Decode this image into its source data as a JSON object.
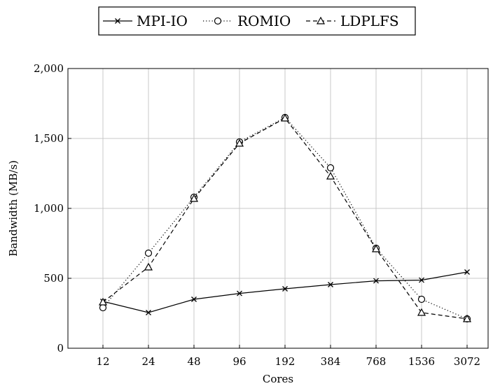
{
  "chart_data": {
    "type": "line",
    "title": "",
    "xlabel": "Cores",
    "ylabel": "Bandwidth (MB/s)",
    "categories": [
      "12",
      "24",
      "48",
      "96",
      "192",
      "384",
      "768",
      "1536",
      "3072"
    ],
    "x_scale": "log2",
    "ylim": [
      0,
      2000
    ],
    "y_ticks": [
      "0",
      "500",
      "1,000",
      "1,500",
      "2,000"
    ],
    "grid": true,
    "legend_position": "top-center",
    "series": [
      {
        "name": "MPI-IO",
        "marker": "x",
        "line_style": "solid",
        "color": "#000000",
        "values": [
          335,
          255,
          350,
          392,
          425,
          455,
          482,
          487,
          545
        ]
      },
      {
        "name": "ROMIO",
        "marker": "circle",
        "line_style": "dotted",
        "color": "#000000",
        "values": [
          290,
          680,
          1080,
          1475,
          1650,
          1290,
          715,
          350,
          210
        ]
      },
      {
        "name": "LDPLFS",
        "marker": "triangle",
        "line_style": "dashed",
        "color": "#000000",
        "values": [
          330,
          580,
          1070,
          1465,
          1645,
          1230,
          710,
          255,
          210
        ]
      }
    ]
  }
}
